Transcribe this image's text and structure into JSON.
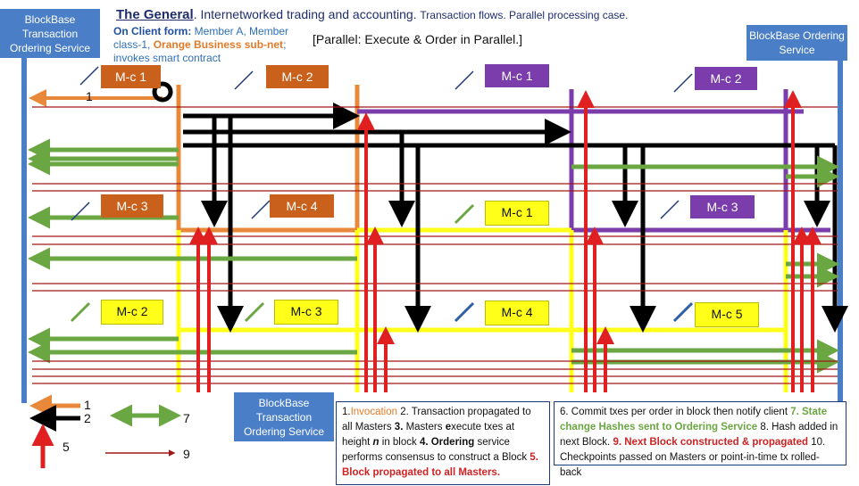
{
  "title": {
    "main": "The General",
    "rest": ". Internetworked trading and accounting. ",
    "sub": "Transaction flows. Parallel processing case."
  },
  "client_form": {
    "label": "On Client form:",
    "members": " Member A, Member class-1, ",
    "orange": "Orange  Business sub-net",
    "tail": "; invokes smart  contract"
  },
  "subtitle": "[Parallel: Execute & Order in Parallel.]",
  "ordering_service": {
    "left": "BlockBase Transaction Ordering Service",
    "right": "BlockBase Ordering Service",
    "bottom": "BlockBase Transaction Ordering Service"
  },
  "subnets": {
    "orange": [
      "M-c 1",
      "M-c 2",
      "M-c 3",
      "M-c 4"
    ],
    "purple": [
      "M-c 1",
      "M-c 2",
      "M-c 3"
    ],
    "yellow_left": [
      "M-c 2",
      "M-c 3"
    ],
    "yellow_right": [
      "M-c 1",
      "M-c 4",
      "M-c 5"
    ]
  },
  "step_labels": {
    "one": "1"
  },
  "legend": {
    "l1": "1",
    "l2": "2",
    "l5": "5",
    "l7": "7",
    "l9": "9"
  },
  "notes": {
    "left": {
      "p1n": "1.",
      "p1": "Invocation",
      "p2": " 2. Transaction propagated to all Masters ",
      "p3": "3.",
      "p3b": " Masters ",
      "p3e": "e",
      "p3c": "xecute txes at height ",
      "p3n": "n",
      "p3d": " in block ",
      "p4": "4. Ordering",
      "p4b": " service performs consensus to construct a Block ",
      "p5": "5. Block propagated to all Masters."
    },
    "right": {
      "p6": "6. Commit txes per order in block then notify client",
      "p7": " 7. State change Hashes sent to Ordering Service",
      "p8": " 8. Hash added in next Block. ",
      "p9": "9. Next Block constructed & propagated",
      "p10": " 10. Checkpoints passed on Masters or point-in-time tx rolled-back"
    }
  },
  "colors": {
    "ordering_blue": "#4a7fc7",
    "orange": "#e8883a",
    "purple": "#7a3dab",
    "yellow": "#ffff1a",
    "green": "#6aa641",
    "red": "#e02020",
    "black": "#000000",
    "darkred": "#a01818"
  }
}
